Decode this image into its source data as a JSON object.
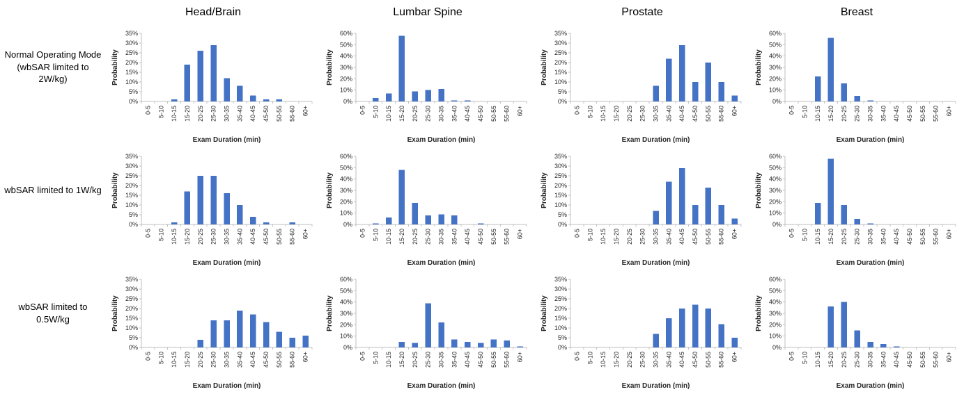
{
  "page": {
    "background_color": "#ffffff",
    "figure_description": "Grid of exam-duration probability histograms by anatomy and wbSAR operating mode"
  },
  "chart_data": {
    "type": "bar",
    "layout": "3 rows (operating modes) x 4 columns (anatomies) of small-multiple histograms",
    "gridlines": false,
    "legend": null,
    "bar_color": "#4472C4",
    "axis_color": "#bfbfbf",
    "xlabel": "Exam Duration (min)",
    "ylabel": "Probability",
    "categories": [
      "0-5",
      "5-10",
      "10-15",
      "15-20",
      "20-25",
      "25-30",
      "30-35",
      "35-40",
      "40-45",
      "45-50",
      "50-55",
      "55-60",
      "60+"
    ],
    "columns": [
      {
        "label": "Head/Brain",
        "ylim": [
          0,
          35
        ],
        "ytick_step": 5,
        "ytick_format": "percent"
      },
      {
        "label": "Lumbar Spine",
        "ylim": [
          0,
          60
        ],
        "ytick_step": 10,
        "ytick_format": "percent"
      },
      {
        "label": "Prostate",
        "ylim": [
          0,
          35
        ],
        "ytick_step": 5,
        "ytick_format": "percent"
      },
      {
        "label": "Breast",
        "ylim": [
          0,
          60
        ],
        "ytick_step": 10,
        "ytick_format": "percent"
      }
    ],
    "rows": [
      {
        "label": "Normal Operating Mode\n(wbSAR limited to 2W/kg)"
      },
      {
        "label": "wbSAR limited to 1W/kg"
      },
      {
        "label": "wbSAR limited to 0.5W/kg"
      }
    ],
    "charts": [
      {
        "row": 0,
        "col": 0,
        "values": [
          0,
          0,
          1,
          19,
          26,
          29,
          12,
          8,
          3,
          1,
          1,
          0,
          0
        ]
      },
      {
        "row": 0,
        "col": 1,
        "values": [
          0,
          3,
          7,
          58,
          9,
          10,
          11,
          1,
          1,
          0,
          0,
          0,
          0
        ]
      },
      {
        "row": 0,
        "col": 2,
        "values": [
          0,
          0,
          0,
          0,
          0,
          0,
          8,
          22,
          29,
          10,
          20,
          10,
          3
        ]
      },
      {
        "row": 0,
        "col": 3,
        "values": [
          0,
          0,
          22,
          56,
          16,
          5,
          1,
          0,
          0,
          0,
          0,
          0,
          0
        ]
      },
      {
        "row": 1,
        "col": 0,
        "values": [
          0,
          0,
          1,
          17,
          25,
          25,
          16,
          10,
          4,
          1,
          0,
          1,
          0
        ]
      },
      {
        "row": 1,
        "col": 1,
        "values": [
          0,
          1,
          6,
          48,
          19,
          8,
          9,
          8,
          0,
          1,
          0,
          0,
          0
        ]
      },
      {
        "row": 1,
        "col": 2,
        "values": [
          0,
          0,
          0,
          0,
          0,
          0,
          7,
          22,
          29,
          10,
          19,
          10,
          3
        ]
      },
      {
        "row": 1,
        "col": 3,
        "values": [
          0,
          0,
          19,
          58,
          17,
          5,
          1,
          0,
          0,
          0,
          0,
          0,
          0
        ]
      },
      {
        "row": 2,
        "col": 0,
        "values": [
          0,
          0,
          0,
          0,
          4,
          14,
          14,
          19,
          17,
          13,
          8,
          5,
          6
        ]
      },
      {
        "row": 2,
        "col": 1,
        "values": [
          0,
          0,
          0,
          5,
          4,
          39,
          22,
          7,
          5,
          4,
          7,
          6,
          1
        ]
      },
      {
        "row": 2,
        "col": 2,
        "values": [
          0,
          0,
          0,
          0,
          0,
          0,
          7,
          15,
          20,
          22,
          20,
          12,
          5
        ]
      },
      {
        "row": 2,
        "col": 3,
        "values": [
          0,
          0,
          0,
          36,
          40,
          15,
          5,
          3,
          1,
          0,
          0,
          0,
          0
        ]
      }
    ]
  }
}
